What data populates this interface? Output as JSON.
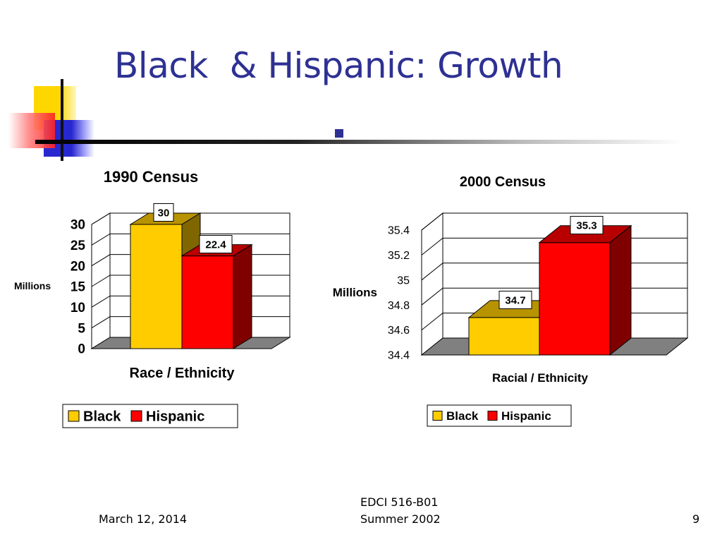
{
  "slide": {
    "title": "Black  & Hispanic: Growth",
    "title_dot": ".",
    "footer_date": "March 12, 2014",
    "footer_course": "EDCI 516-B01",
    "footer_term": "Summer 2002",
    "page_number": "9"
  },
  "colors": {
    "title": "#2e3192",
    "black_series": "#ffcc00",
    "hispanic_series": "#ff0000"
  },
  "chart_data": [
    {
      "type": "bar",
      "title": "1990 Census",
      "xlabel": "Race / Ethnicity",
      "ylabel": "Millions",
      "ylim": [
        0,
        30
      ],
      "yticks": [
        "0",
        "5",
        "10",
        "15",
        "20",
        "25",
        "30"
      ],
      "series": [
        {
          "name": "Black",
          "value": 30,
          "label": "30",
          "color": "#ffcc00"
        },
        {
          "name": "Hispanic",
          "value": 22.4,
          "label": "22.4",
          "color": "#ff0000"
        }
      ],
      "legend": [
        "Black",
        "Hispanic"
      ],
      "legend_position": "bottom",
      "grid": true
    },
    {
      "type": "bar",
      "title": "2000 Census",
      "xlabel": "Racial / Ethnicity",
      "ylabel": "Millions",
      "ylim": [
        34.4,
        35.4
      ],
      "yticks": [
        "34.4",
        "34.6",
        "34.8",
        "35",
        "35.2",
        "35.4"
      ],
      "series": [
        {
          "name": "Black",
          "value": 34.7,
          "label": "34.7",
          "color": "#ffcc00"
        },
        {
          "name": "Hispanic",
          "value": 35.3,
          "label": "35.3",
          "color": "#ff0000"
        }
      ],
      "legend": [
        "Black",
        "Hispanic"
      ],
      "legend_position": "bottom",
      "grid": true
    }
  ]
}
